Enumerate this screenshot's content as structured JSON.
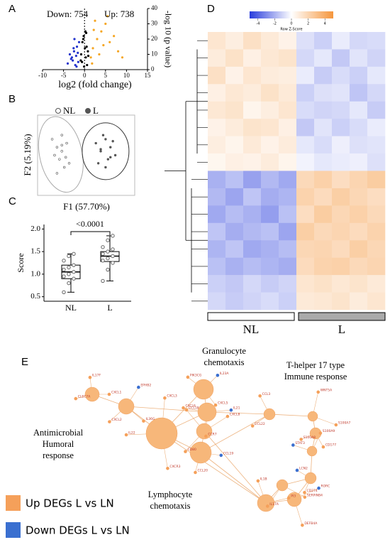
{
  "chart_data": [
    {
      "panel": "A",
      "type": "scatter",
      "annotations": [
        "Down: 754",
        "Up: 738"
      ],
      "xlabel": "log2 (fold change)",
      "ylabel": "-log 10 (p value)",
      "xlim": [
        -10,
        15
      ],
      "xticks": [
        -10,
        -5,
        0,
        5,
        10,
        15
      ],
      "ylim": [
        0,
        40
      ],
      "yticks": [
        0,
        10,
        20,
        30,
        40
      ],
      "series": [
        {
          "color": "#2233cc",
          "x": [
            -1.5,
            -2,
            -2.5,
            -3,
            -1.8,
            -2.2,
            -3.5,
            -1.3,
            -2.8,
            -4,
            -1.6,
            -2.4,
            -3.2,
            -1.9,
            -2.6
          ],
          "y": [
            5,
            9,
            12,
            8,
            15,
            3,
            10,
            18,
            6,
            4,
            11,
            20,
            7,
            2,
            14
          ]
        },
        {
          "color": "#f5a623",
          "x": [
            1.5,
            2,
            3,
            4,
            5,
            6,
            7,
            8,
            2.5,
            3.5,
            1.8,
            4.5,
            9,
            5.5,
            2.2
          ],
          "y": [
            8,
            14,
            20,
            25,
            30,
            18,
            22,
            12,
            32,
            10,
            4,
            16,
            8,
            35,
            26
          ]
        },
        {
          "color": "#000000",
          "x": [
            -0.8,
            -0.5,
            -0.2,
            0.2,
            0.5,
            0.8,
            -0.6,
            0.3,
            -0.3,
            0.6,
            0.1,
            -0.9,
            0.9,
            -0.1,
            0.4
          ],
          "y": [
            10,
            18,
            22,
            25,
            15,
            12,
            5,
            8,
            20,
            3,
            14,
            6,
            9,
            2,
            24
          ]
        }
      ]
    },
    {
      "panel": "B",
      "type": "scatter",
      "xlabel": "F1 (57.70%)",
      "ylabel": "F2 (5.19%)",
      "xlim": [
        -1,
        1
      ],
      "ylim": [
        -1,
        1
      ],
      "series": [
        {
          "name": "NL",
          "marker": "open",
          "color": "#555555",
          "x": [
            -0.7,
            -0.6,
            -0.5,
            -0.4,
            -0.55,
            -0.65,
            -0.45,
            -0.5,
            -0.35,
            -0.6,
            -0.5,
            -0.42
          ],
          "y": [
            0.4,
            0.2,
            0.1,
            0.3,
            -0.1,
            0,
            -0.3,
            0.5,
            -0.2,
            -0.45,
            0.25,
            -0.05
          ]
        },
        {
          "name": "L",
          "marker": "filled",
          "color": "#555555",
          "x": [
            0.2,
            0.3,
            0.4,
            0.5,
            0.6,
            0.35,
            0.45,
            0.25,
            0.55,
            0.4,
            0.3,
            0.5
          ],
          "y": [
            0.3,
            0.1,
            0.4,
            0.2,
            0,
            0.5,
            -0.1,
            -0.2,
            0.35,
            -0.3,
            0.15,
            -0.05
          ]
        }
      ]
    },
    {
      "panel": "C",
      "type": "box",
      "ylabel": "Score",
      "annotation": "<0.0001",
      "categories": [
        "NL",
        "L"
      ],
      "ylim": [
        0.4,
        2.1
      ],
      "yticks": [
        0.5,
        {
          "value": 1,
          "label": "1.0"
        },
        1.5,
        {
          "value": 2,
          "label": "2.0"
        }
      ],
      "stats": [
        {
          "min": 0.6,
          "q1": 0.9,
          "median": 1.05,
          "q3": 1.2,
          "max": 1.45
        },
        {
          "min": 0.85,
          "q1": 1.28,
          "median": 1.4,
          "q3": 1.5,
          "max": 1.85
        }
      ],
      "points": [
        [
          0.6,
          0.8,
          0.9,
          0.95,
          1.0,
          1.05,
          1.1,
          1.15,
          1.2,
          1.3,
          1.4,
          1.45
        ],
        [
          0.85,
          1.1,
          1.25,
          1.3,
          1.35,
          1.4,
          1.45,
          1.5,
          1.55,
          1.6,
          1.75,
          1.85
        ]
      ]
    },
    {
      "panel": "D",
      "type": "heatmap",
      "colorbar_label": "Row Z-Score",
      "zlim": [
        -5,
        5
      ],
      "zticks": [
        -4,
        -2,
        0,
        2,
        4
      ],
      "groups": [
        "NL",
        "L"
      ],
      "matrix": [
        [
          1.2,
          0.8,
          1.5,
          1.0,
          0.6,
          -0.8,
          -1.2,
          -0.5,
          -1.0,
          -0.9
        ],
        [
          0.9,
          1.4,
          0.7,
          1.1,
          1.3,
          -1.0,
          -0.6,
          -1.4,
          -0.7,
          -1.1
        ],
        [
          1.5,
          0.6,
          1.2,
          0.9,
          0.8,
          -0.5,
          -1.3,
          -0.9,
          -1.2,
          -0.6
        ],
        [
          0.7,
          1.1,
          0.9,
          1.4,
          1.0,
          -1.2,
          -0.8,
          -0.7,
          -1.5,
          -1.0
        ],
        [
          1.1,
          1.3,
          0.5,
          0.8,
          1.2,
          -0.9,
          -1.1,
          -1.0,
          -0.6,
          -1.3
        ],
        [
          0.6,
          0.9,
          1.3,
          1.2,
          0.7,
          -1.4,
          -0.7,
          -1.2,
          -0.9,
          -0.5
        ],
        [
          0.8,
          0.5,
          1.0,
          0.6,
          0.9,
          -0.6,
          -0.9,
          -0.4,
          -0.8,
          -0.7
        ],
        [
          0.4,
          0.7,
          0.6,
          0.9,
          0.5,
          -0.3,
          -0.6,
          -0.5,
          -0.4,
          -0.8
        ],
        [
          -2.0,
          -1.6,
          -2.4,
          -1.8,
          -2.2,
          1.8,
          2.2,
          1.6,
          2.0,
          2.4
        ],
        [
          -1.8,
          -2.3,
          -1.5,
          -2.1,
          -1.9,
          2.1,
          1.7,
          2.3,
          1.9,
          1.6
        ],
        [
          -2.2,
          -1.7,
          -2.0,
          -2.5,
          -1.6,
          1.6,
          2.4,
          1.9,
          2.2,
          1.8
        ],
        [
          -1.5,
          -2.1,
          -1.8,
          -1.6,
          -2.3,
          2.3,
          1.8,
          2.0,
          1.7,
          2.1
        ],
        [
          -1.9,
          -1.5,
          -2.2,
          -2.0,
          -1.7,
          1.9,
          2.0,
          1.7,
          2.3,
          1.9
        ],
        [
          -1.6,
          -2.0,
          -1.7,
          -1.9,
          -2.1,
          1.7,
          2.1,
          2.2,
          1.8,
          2.0
        ],
        [
          -1.2,
          -1.4,
          -1.0,
          -1.3,
          -1.1,
          1.2,
          1.4,
          1.1,
          1.3,
          1.0
        ],
        [
          -1.0,
          -1.3,
          -1.1,
          -0.9,
          -1.2,
          1.0,
          1.1,
          1.3,
          0.9,
          1.2
        ]
      ]
    }
  ],
  "network": {
    "panel": "E",
    "clusters": [
      [
        "Granulocyte",
        "chemotaxis"
      ],
      [
        "T-helper 17 type",
        "Immune response"
      ],
      [
        "Antimicrobial",
        "Humoral",
        "response"
      ],
      [
        "Lymphocyte",
        "chemotaxis"
      ]
    ],
    "legend": [
      {
        "label": "Up DEGs L vs LN",
        "color": "#f5a05a"
      },
      {
        "label": "Down DEGs L vs LN",
        "color": "#3a6fd0"
      }
    ],
    "genes": [
      {
        "label": "CXCL1",
        "group": 0
      },
      {
        "label": "CXCL2",
        "group": 0
      },
      {
        "label": "CXCL3",
        "group": 0
      },
      {
        "label": "CXCL5",
        "group": 0
      },
      {
        "label": "CXCL6",
        "group": 0
      },
      {
        "label": "CXCL8",
        "group": 0
      },
      {
        "label": "CCL20",
        "group": 0
      },
      {
        "label": "CCL3",
        "group": 0
      },
      {
        "label": "S100A7",
        "group": 0
      },
      {
        "label": "S100A8",
        "group": 0
      },
      {
        "label": "S100A9",
        "group": 0
      },
      {
        "label": "DEFB4A",
        "group": 0
      },
      {
        "label": "LCN2",
        "group": 1
      },
      {
        "label": "PI3",
        "group": 0
      },
      {
        "label": "IL17A",
        "group": 0
      },
      {
        "label": "IL17F",
        "group": 0
      },
      {
        "label": "IL36G",
        "group": 0
      },
      {
        "label": "IL22",
        "group": 0
      },
      {
        "label": "IL23A",
        "group": 1
      },
      {
        "label": "CCR7",
        "group": 0
      },
      {
        "label": "CCL18",
        "group": 0
      },
      {
        "label": "CCL19",
        "group": 1
      },
      {
        "label": "CCL22",
        "group": 0
      },
      {
        "label": "WNT5A",
        "group": 0
      },
      {
        "label": "CD177",
        "group": 0
      },
      {
        "label": "STAT3",
        "group": 1
      },
      {
        "label": "RORC",
        "group": 1
      },
      {
        "label": "CD274",
        "group": 0
      },
      {
        "label": "IL1B",
        "group": 0
      },
      {
        "label": "SERPINB4",
        "group": 0
      },
      {
        "label": "CLEC7A",
        "group": 0
      },
      {
        "label": "EPHB2",
        "group": 1
      },
      {
        "label": "CXCR3",
        "group": 0
      },
      {
        "label": "PIK3CG",
        "group": 0
      },
      {
        "label": "IL21",
        "group": 1
      },
      {
        "label": "CD80",
        "group": 0
      }
    ]
  }
}
